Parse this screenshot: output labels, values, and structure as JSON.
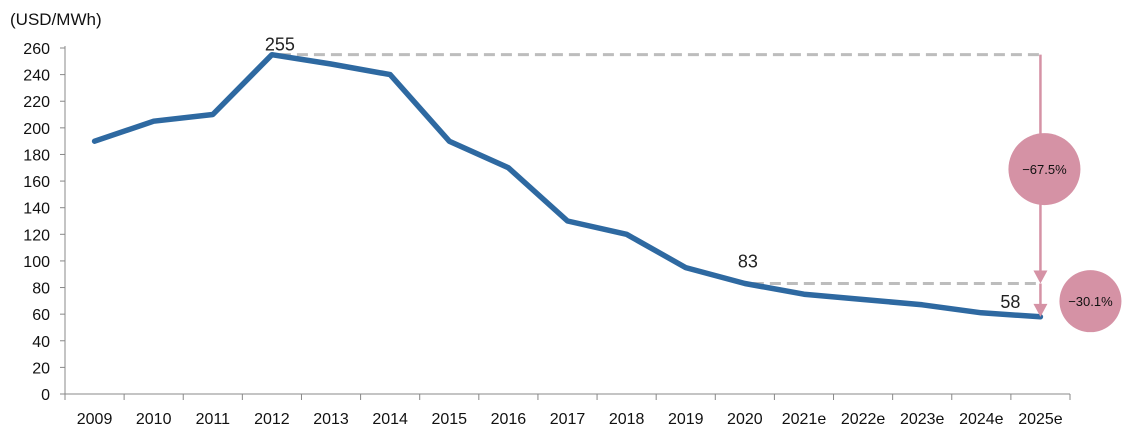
{
  "chart_data": {
    "type": "line",
    "title": "",
    "unit_label": "(USD/MWh)",
    "xlabel": "",
    "ylabel": "",
    "ylim": [
      0,
      260
    ],
    "y_ticks": [
      0,
      20,
      40,
      60,
      80,
      100,
      120,
      140,
      160,
      180,
      200,
      220,
      240,
      260
    ],
    "categories": [
      "2009",
      "2010",
      "2011",
      "2012",
      "2013",
      "2014",
      "2015",
      "2016",
      "2017",
      "2018",
      "2019",
      "2020",
      "2021e",
      "2022e",
      "2023e",
      "2024e",
      "2025e"
    ],
    "series": [
      {
        "values": [
          190,
          205,
          210,
          255,
          248,
          240,
          190,
          170,
          130,
          120,
          95,
          83,
          75,
          71,
          67,
          61,
          58
        ],
        "color": "#2e69a1"
      }
    ],
    "grid": false,
    "legend": "none",
    "data_labels": [
      {
        "category": "2012",
        "text": "255"
      },
      {
        "category": "2020",
        "text": "83"
      },
      {
        "category": "2025e",
        "text": "58"
      }
    ],
    "reference_lines": [
      {
        "from_category": "2012",
        "value": 255
      },
      {
        "from_category": "2020",
        "value": 83
      }
    ],
    "annotations": [
      {
        "text": "−67.5%",
        "from_value": 255,
        "to_value": 83
      },
      {
        "text": "−30.1%",
        "from_value": 83,
        "to_value": 58
      }
    ],
    "colors": {
      "line": "#2e69a1",
      "reference_line": "#bdbdbd",
      "annotation": "#d592a5",
      "axis": "#888888"
    }
  }
}
